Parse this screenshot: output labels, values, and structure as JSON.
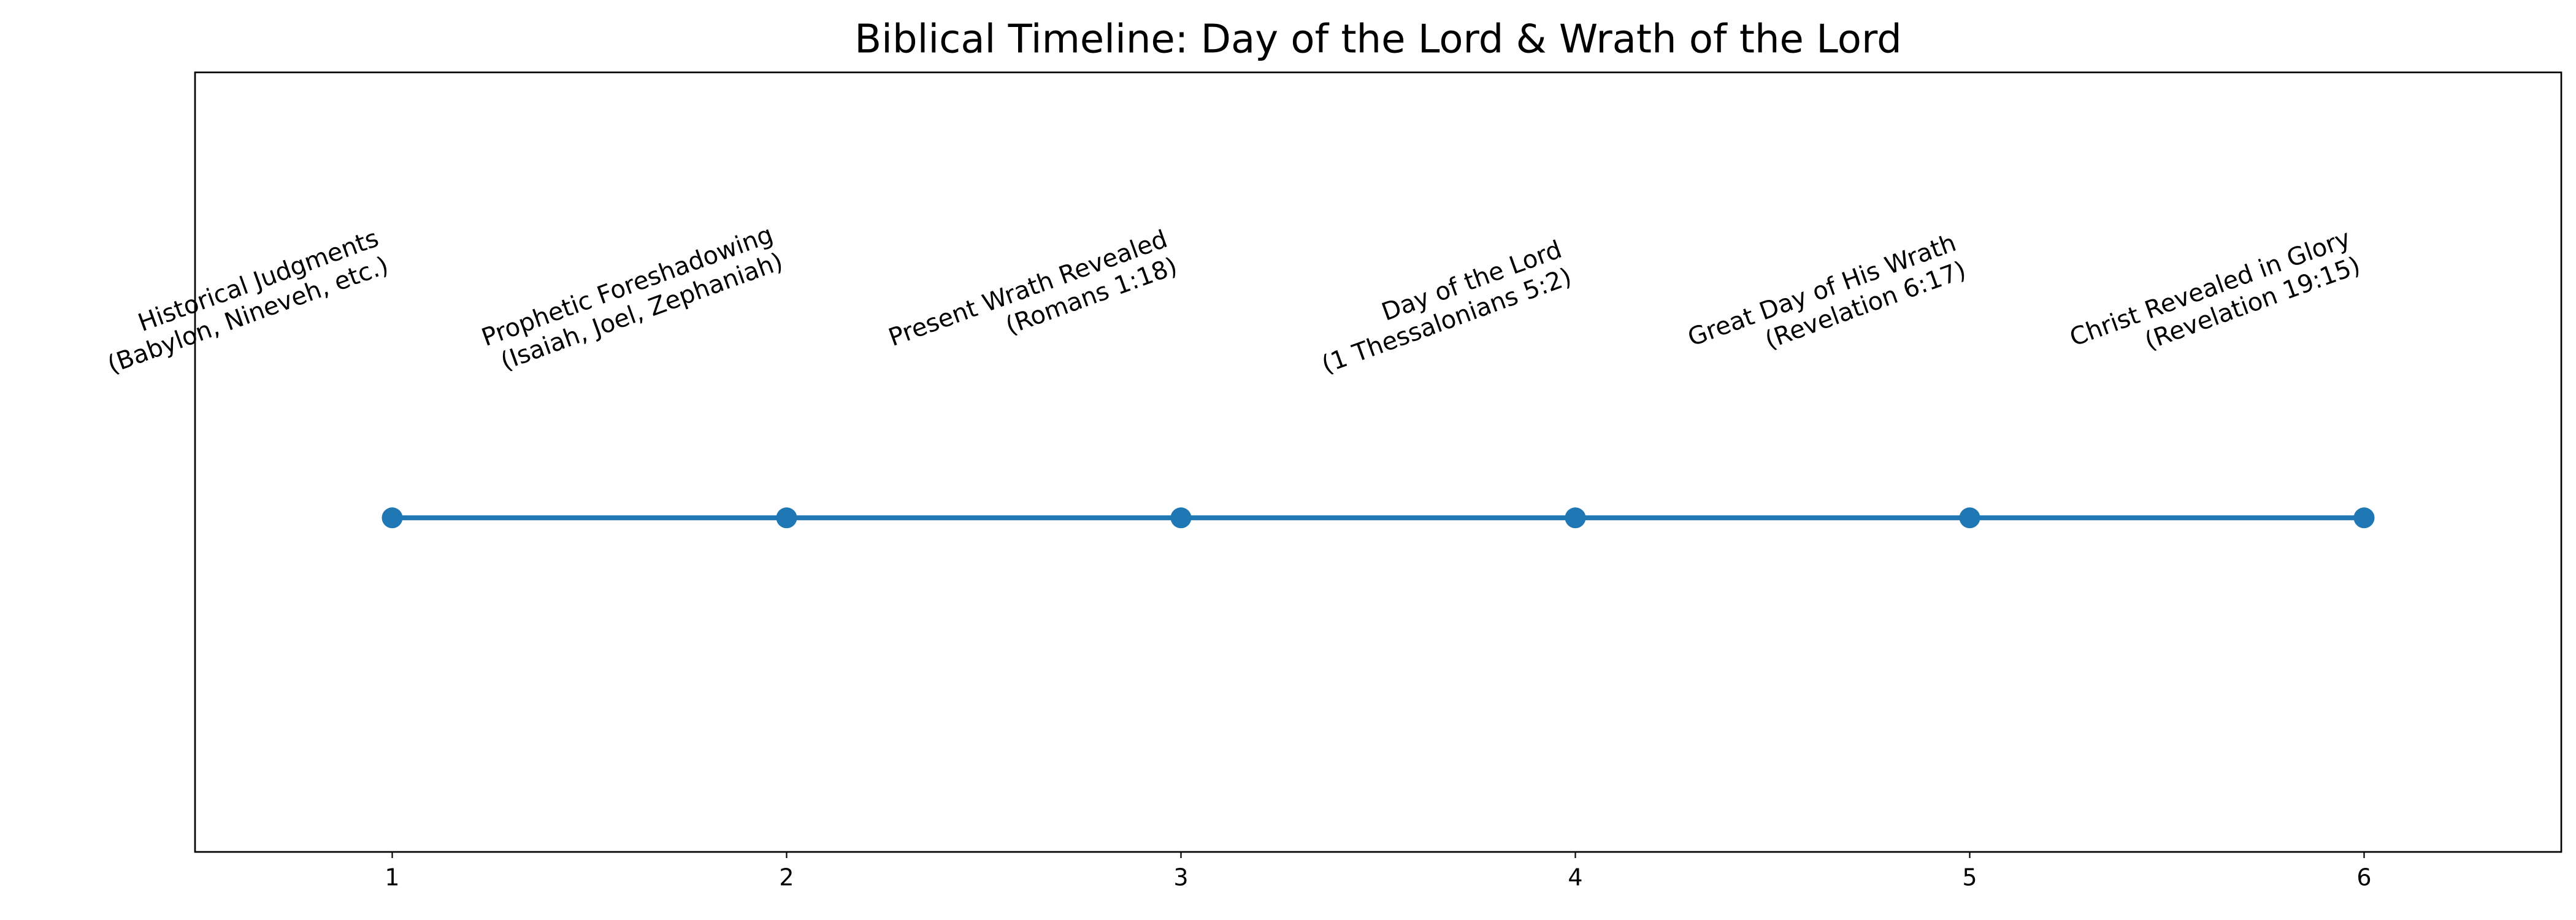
{
  "chart_data": {
    "type": "line",
    "title": "Biblical Timeline: Day of the Lord & Wrath of the Lord",
    "x": [
      1,
      2,
      3,
      4,
      5,
      6
    ],
    "series": [
      {
        "color": "#1f77b4",
        "values": [
          0,
          0,
          0,
          0,
          0,
          0
        ]
      }
    ],
    "annotations": [
      [
        "Historical Judgments",
        "(Babylon, Nineveh, etc.)"
      ],
      [
        "Prophetic Foreshadowing",
        "(Isaiah, Joel, Zephaniah)"
      ],
      [
        "Present Wrath Revealed",
        "(Romans 1:18)"
      ],
      [
        "Day of the Lord",
        "(1 Thessalonians 5:2)"
      ],
      [
        "Great Day of His Wrath",
        "(Revelation 6:17)"
      ],
      [
        "Christ Revealed in Glory",
        "(Revelation 19:15)"
      ]
    ],
    "xlim": [
      0.5,
      6.5
    ],
    "ylim": [
      -0.75,
      1
    ],
    "xticks": [
      1,
      2,
      3,
      4,
      5,
      6
    ]
  }
}
